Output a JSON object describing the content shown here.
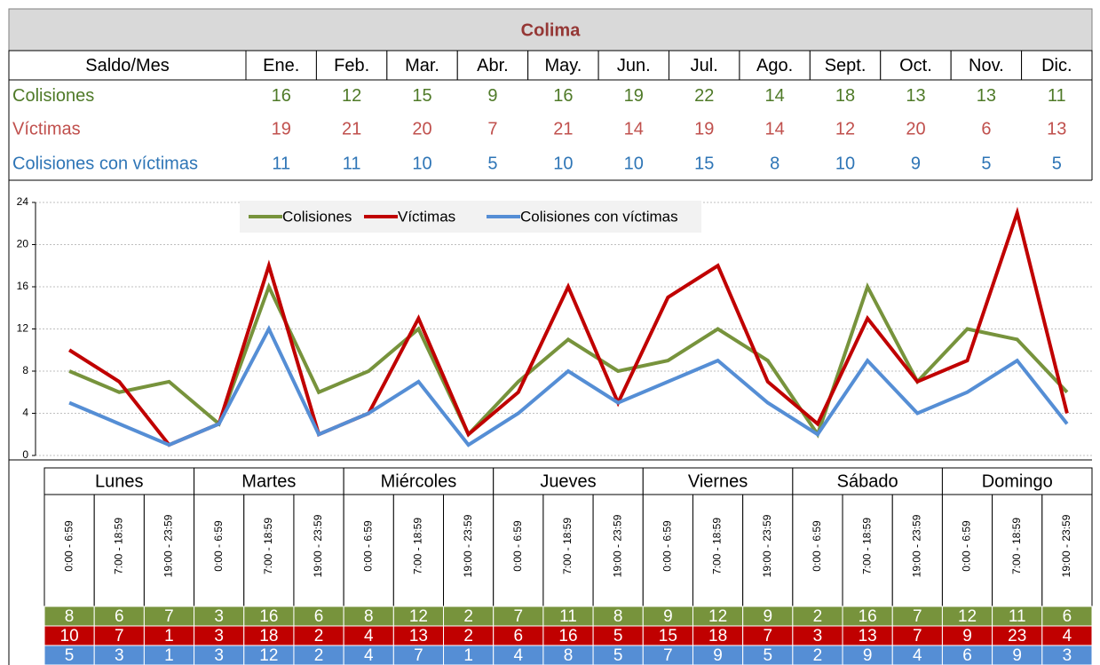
{
  "table": {
    "title": "Colima",
    "header": [
      "Saldo/Mes",
      "Ene.",
      "Feb.",
      "Mar.",
      "Abr.",
      "May.",
      "Jun.",
      "Jul.",
      "Ago.",
      "Sept.",
      "Oct.",
      "Nov.",
      "Dic."
    ],
    "rows": [
      {
        "label": "Colisiones",
        "color": "#4f7a28",
        "values": [
          16,
          12,
          15,
          9,
          16,
          19,
          22,
          14,
          18,
          13,
          13,
          11
        ]
      },
      {
        "label": "Víctimas",
        "color": "#c0504d",
        "values": [
          19,
          21,
          20,
          7,
          21,
          14,
          19,
          14,
          12,
          20,
          6,
          13
        ]
      },
      {
        "label": "Colisiones con víctimas",
        "color": "#2e75b6",
        "values": [
          11,
          11,
          10,
          5,
          10,
          10,
          15,
          8,
          10,
          9,
          5,
          5
        ]
      }
    ]
  },
  "chart_data": {
    "type": "line",
    "days": [
      "Lunes",
      "Martes",
      "Miércoles",
      "Jueves",
      "Viernes",
      "Sábado",
      "Domingo"
    ],
    "categories": [
      "0:00 - 6:59",
      "7:00 - 18:59",
      "19:00 - 23:59",
      "0:00 - 6:59",
      "7:00 - 18:59",
      "19:00 - 23:59",
      "0:00 - 6:59",
      "7:00 - 18:59",
      "19:00 - 23:59",
      "0:00 - 6:59",
      "7:00 - 18:59",
      "19:00 - 23:59",
      "0:00 - 6:59",
      "7:00 - 18:59",
      "19:00 - 23:59",
      "0:00 - 6:59",
      "7:00 - 18:59",
      "19:00 - 23:59",
      "0:00 - 6:59",
      "7:00 - 18:59",
      "19:00 - 23:59"
    ],
    "series": [
      {
        "name": "Colisiones",
        "color": "#77933c",
        "values": [
          8,
          6,
          7,
          3,
          16,
          6,
          8,
          12,
          2,
          7,
          11,
          8,
          9,
          12,
          9,
          2,
          16,
          7,
          12,
          11,
          6
        ]
      },
      {
        "name": "Víctimas",
        "color": "#c00000",
        "values": [
          10,
          7,
          1,
          3,
          18,
          2,
          4,
          13,
          2,
          6,
          16,
          5,
          15,
          18,
          7,
          3,
          13,
          7,
          9,
          23,
          4
        ]
      },
      {
        "name": "Colisiones con víctimas",
        "color": "#558ed5",
        "values": [
          5,
          3,
          1,
          3,
          12,
          2,
          4,
          7,
          1,
          4,
          8,
          5,
          7,
          9,
          5,
          2,
          9,
          4,
          6,
          9,
          3
        ]
      }
    ],
    "ylim": [
      0,
      24
    ],
    "yticks": [
      0,
      4,
      8,
      12,
      16,
      20,
      24
    ],
    "grid": true,
    "legend": "top"
  }
}
